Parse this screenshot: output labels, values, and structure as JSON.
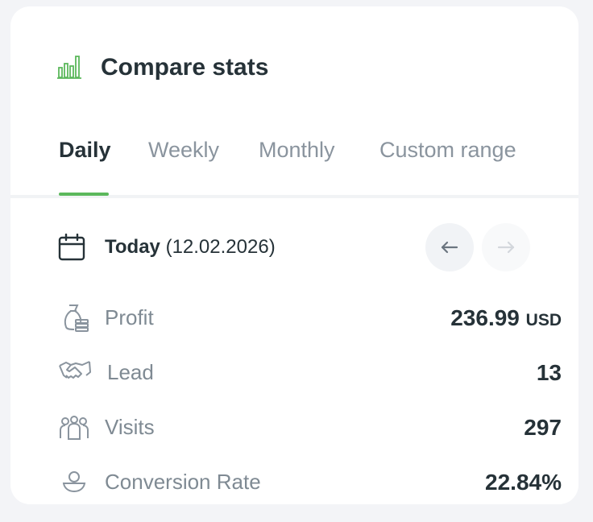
{
  "header": {
    "title": "Compare stats"
  },
  "tabs": [
    "Daily",
    "Weekly",
    "Monthly",
    "Custom range"
  ],
  "date": {
    "label": "Today",
    "value": "(12.02.2026)"
  },
  "metrics": [
    {
      "label": "Profit",
      "value": "236.99",
      "unit": "USD"
    },
    {
      "label": "Lead",
      "value": "13"
    },
    {
      "label": "Visits",
      "value": "297"
    },
    {
      "label": "Conversion Rate",
      "value": "22.84%"
    }
  ]
}
